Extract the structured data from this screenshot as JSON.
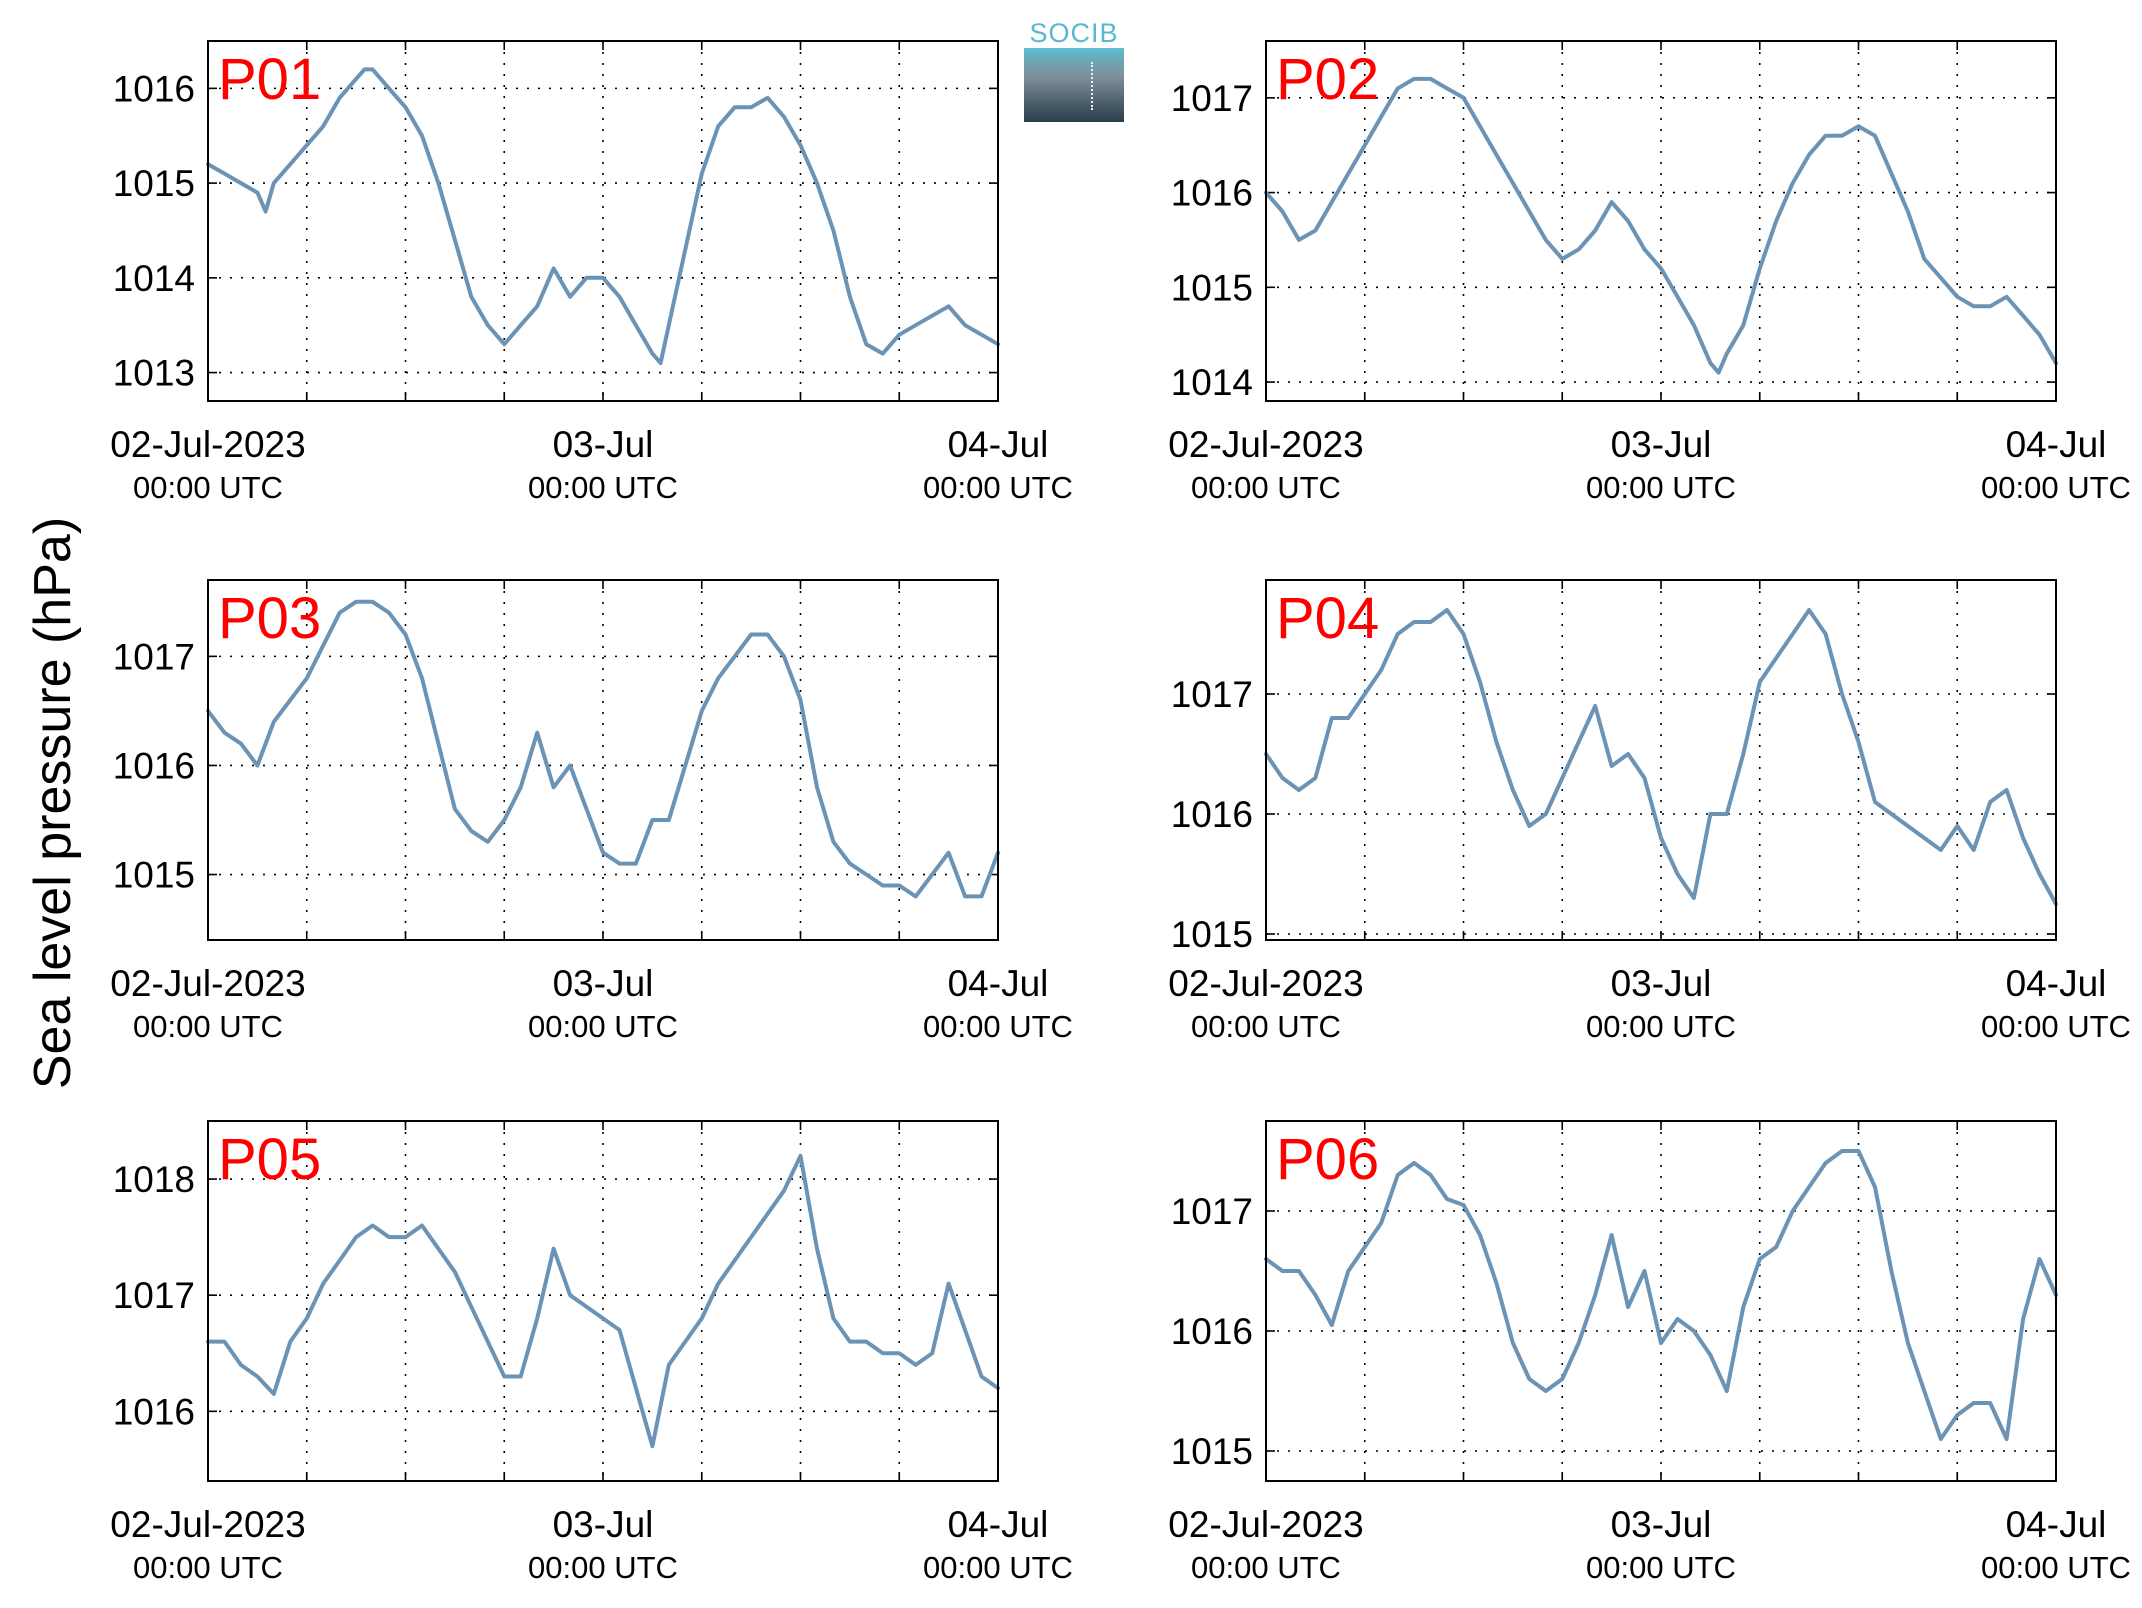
{
  "figure": {
    "ylabel": "Sea level pressure (hPa)",
    "line_color": "#6b93b5",
    "panel_label_color": "#ff0000",
    "logo_text": "SOCIB",
    "x_tick_labels": [
      {
        "date": "02-Jul-2023",
        "time": "00:00 UTC"
      },
      {
        "date": "03-Jul",
        "time": "00:00 UTC"
      },
      {
        "date": "04-Jul",
        "time": "00:00 UTC"
      }
    ]
  },
  "chart_data": [
    {
      "type": "line",
      "panel": "P01",
      "xlim": [
        "2023-07-02 00:00",
        "2023-07-04 00:00"
      ],
      "ylim": [
        1012.7,
        1016.5
      ],
      "yticks": [
        1013,
        1014,
        1015,
        1016
      ],
      "grid": true,
      "series": [
        {
          "x": [
            "2023-07-02 00:00",
            "2023-07-02 01:00",
            "2023-07-02 02:00",
            "2023-07-02 03:00",
            "2023-07-02 03:30",
            "2023-07-02 04:00",
            "2023-07-02 05:00",
            "2023-07-02 06:00",
            "2023-07-02 07:00",
            "2023-07-02 08:00",
            "2023-07-02 09:00",
            "2023-07-02 09:30",
            "2023-07-02 10:00",
            "2023-07-02 11:00",
            "2023-07-02 12:00",
            "2023-07-02 13:00",
            "2023-07-02 14:00",
            "2023-07-02 15:00",
            "2023-07-02 16:00",
            "2023-07-02 17:00",
            "2023-07-02 18:00",
            "2023-07-02 19:00",
            "2023-07-02 20:00",
            "2023-07-02 21:00",
            "2023-07-02 22:00",
            "2023-07-02 23:00",
            "2023-07-03 00:00",
            "2023-07-03 01:00",
            "2023-07-03 02:00",
            "2023-07-03 03:00",
            "2023-07-03 03:30",
            "2023-07-03 04:00",
            "2023-07-03 05:00",
            "2023-07-03 06:00",
            "2023-07-03 07:00",
            "2023-07-03 08:00",
            "2023-07-03 09:00",
            "2023-07-03 10:00",
            "2023-07-03 11:00",
            "2023-07-03 12:00",
            "2023-07-03 13:00",
            "2023-07-03 14:00",
            "2023-07-03 15:00",
            "2023-07-03 16:00",
            "2023-07-03 17:00",
            "2023-07-03 18:00",
            "2023-07-03 19:00",
            "2023-07-03 20:00",
            "2023-07-03 21:00",
            "2023-07-03 22:00",
            "2023-07-03 23:00",
            "2023-07-04 00:00"
          ],
          "y": [
            1015.2,
            1015.1,
            1015.0,
            1014.9,
            1014.7,
            1015.0,
            1015.2,
            1015.4,
            1015.6,
            1015.9,
            1016.1,
            1016.2,
            1016.2,
            1016.0,
            1015.8,
            1015.5,
            1015.0,
            1014.4,
            1013.8,
            1013.5,
            1013.3,
            1013.5,
            1013.7,
            1014.1,
            1013.8,
            1014.0,
            1014.0,
            1013.8,
            1013.5,
            1013.2,
            1013.1,
            1013.5,
            1014.3,
            1015.1,
            1015.6,
            1015.8,
            1015.8,
            1015.9,
            1015.7,
            1015.4,
            1015.0,
            1014.5,
            1013.8,
            1013.3,
            1013.2,
            1013.4,
            1013.5,
            1013.6,
            1013.7,
            1013.5,
            1013.4,
            1013.3
          ]
        }
      ]
    },
    {
      "type": "line",
      "panel": "P02",
      "xlim": [
        "2023-07-02 00:00",
        "2023-07-04 00:00"
      ],
      "ylim": [
        1013.8,
        1017.6
      ],
      "yticks": [
        1014,
        1015,
        1016,
        1017
      ],
      "grid": true,
      "series": [
        {
          "x": [
            "2023-07-02 00:00",
            "2023-07-02 01:00",
            "2023-07-02 02:00",
            "2023-07-02 03:00",
            "2023-07-02 04:00",
            "2023-07-02 05:00",
            "2023-07-02 06:00",
            "2023-07-02 07:00",
            "2023-07-02 08:00",
            "2023-07-02 09:00",
            "2023-07-02 10:00",
            "2023-07-02 11:00",
            "2023-07-02 12:00",
            "2023-07-02 13:00",
            "2023-07-02 14:00",
            "2023-07-02 15:00",
            "2023-07-02 16:00",
            "2023-07-02 17:00",
            "2023-07-02 18:00",
            "2023-07-02 19:00",
            "2023-07-02 20:00",
            "2023-07-02 21:00",
            "2023-07-02 22:00",
            "2023-07-02 23:00",
            "2023-07-03 00:00",
            "2023-07-03 01:00",
            "2023-07-03 02:00",
            "2023-07-03 03:00",
            "2023-07-03 03:30",
            "2023-07-03 04:00",
            "2023-07-03 05:00",
            "2023-07-03 06:00",
            "2023-07-03 07:00",
            "2023-07-03 08:00",
            "2023-07-03 09:00",
            "2023-07-03 10:00",
            "2023-07-03 11:00",
            "2023-07-03 12:00",
            "2023-07-03 13:00",
            "2023-07-03 14:00",
            "2023-07-03 15:00",
            "2023-07-03 16:00",
            "2023-07-03 17:00",
            "2023-07-03 18:00",
            "2023-07-03 19:00",
            "2023-07-03 20:00",
            "2023-07-03 21:00",
            "2023-07-03 22:00",
            "2023-07-03 23:00",
            "2023-07-04 00:00"
          ],
          "y": [
            1016.0,
            1015.8,
            1015.5,
            1015.6,
            1015.9,
            1016.2,
            1016.5,
            1016.8,
            1017.1,
            1017.2,
            1017.2,
            1017.1,
            1017.0,
            1016.7,
            1016.4,
            1016.1,
            1015.8,
            1015.5,
            1015.3,
            1015.4,
            1015.6,
            1015.9,
            1015.7,
            1015.4,
            1015.2,
            1014.9,
            1014.6,
            1014.2,
            1014.1,
            1014.3,
            1014.6,
            1015.2,
            1015.7,
            1016.1,
            1016.4,
            1016.6,
            1016.6,
            1016.7,
            1016.6,
            1016.2,
            1015.8,
            1015.3,
            1015.1,
            1014.9,
            1014.8,
            1014.8,
            1014.9,
            1014.7,
            1014.5,
            1014.2
          ]
        }
      ]
    },
    {
      "type": "line",
      "panel": "P03",
      "xlim": [
        "2023-07-02 00:00",
        "2023-07-04 00:00"
      ],
      "ylim": [
        1014.4,
        1017.7
      ],
      "yticks": [
        1015,
        1016,
        1017
      ],
      "grid": true,
      "series": [
        {
          "x": [
            "2023-07-02 00:00",
            "2023-07-02 01:00",
            "2023-07-02 02:00",
            "2023-07-02 03:00",
            "2023-07-02 04:00",
            "2023-07-02 05:00",
            "2023-07-02 06:00",
            "2023-07-02 07:00",
            "2023-07-02 08:00",
            "2023-07-02 09:00",
            "2023-07-02 10:00",
            "2023-07-02 11:00",
            "2023-07-02 12:00",
            "2023-07-02 13:00",
            "2023-07-02 14:00",
            "2023-07-02 15:00",
            "2023-07-02 16:00",
            "2023-07-02 17:00",
            "2023-07-02 18:00",
            "2023-07-02 19:00",
            "2023-07-02 20:00",
            "2023-07-02 21:00",
            "2023-07-02 22:00",
            "2023-07-02 23:00",
            "2023-07-03 00:00",
            "2023-07-03 01:00",
            "2023-07-03 02:00",
            "2023-07-03 03:00",
            "2023-07-03 04:00",
            "2023-07-03 05:00",
            "2023-07-03 06:00",
            "2023-07-03 07:00",
            "2023-07-03 08:00",
            "2023-07-03 09:00",
            "2023-07-03 10:00",
            "2023-07-03 11:00",
            "2023-07-03 12:00",
            "2023-07-03 13:00",
            "2023-07-03 14:00",
            "2023-07-03 15:00",
            "2023-07-03 16:00",
            "2023-07-03 17:00",
            "2023-07-03 18:00",
            "2023-07-03 19:00",
            "2023-07-03 20:00",
            "2023-07-03 21:00",
            "2023-07-03 22:00",
            "2023-07-03 23:00",
            "2023-07-04 00:00"
          ],
          "y": [
            1016.5,
            1016.3,
            1016.2,
            1016.0,
            1016.4,
            1016.6,
            1016.8,
            1017.1,
            1017.4,
            1017.5,
            1017.5,
            1017.4,
            1017.2,
            1016.8,
            1016.2,
            1015.6,
            1015.4,
            1015.3,
            1015.5,
            1015.8,
            1016.3,
            1015.8,
            1016.0,
            1015.6,
            1015.2,
            1015.1,
            1015.1,
            1015.5,
            1015.5,
            1016.0,
            1016.5,
            1016.8,
            1017.0,
            1017.2,
            1017.2,
            1017.0,
            1016.6,
            1015.8,
            1015.3,
            1015.1,
            1015.0,
            1014.9,
            1014.9,
            1014.8,
            1015.0,
            1015.2,
            1014.8,
            1014.8,
            1015.2
          ]
        }
      ]
    },
    {
      "type": "line",
      "panel": "P04",
      "xlim": [
        "2023-07-02 00:00",
        "2023-07-04 00:00"
      ],
      "ylim": [
        1014.95,
        1017.95
      ],
      "yticks": [
        1015,
        1016,
        1017
      ],
      "grid": true,
      "series": [
        {
          "x": [
            "2023-07-02 00:00",
            "2023-07-02 01:00",
            "2023-07-02 02:00",
            "2023-07-02 03:00",
            "2023-07-02 04:00",
            "2023-07-02 05:00",
            "2023-07-02 06:00",
            "2023-07-02 07:00",
            "2023-07-02 08:00",
            "2023-07-02 09:00",
            "2023-07-02 10:00",
            "2023-07-02 11:00",
            "2023-07-02 12:00",
            "2023-07-02 13:00",
            "2023-07-02 14:00",
            "2023-07-02 15:00",
            "2023-07-02 16:00",
            "2023-07-02 17:00",
            "2023-07-02 18:00",
            "2023-07-02 19:00",
            "2023-07-02 20:00",
            "2023-07-02 21:00",
            "2023-07-02 22:00",
            "2023-07-02 23:00",
            "2023-07-03 00:00",
            "2023-07-03 01:00",
            "2023-07-03 02:00",
            "2023-07-03 03:00",
            "2023-07-03 04:00",
            "2023-07-03 05:00",
            "2023-07-03 06:00",
            "2023-07-03 07:00",
            "2023-07-03 08:00",
            "2023-07-03 09:00",
            "2023-07-03 10:00",
            "2023-07-03 11:00",
            "2023-07-03 12:00",
            "2023-07-03 13:00",
            "2023-07-03 14:00",
            "2023-07-03 15:00",
            "2023-07-03 16:00",
            "2023-07-03 17:00",
            "2023-07-03 18:00",
            "2023-07-03 19:00",
            "2023-07-03 20:00",
            "2023-07-03 21:00",
            "2023-07-03 22:00",
            "2023-07-03 23:00",
            "2023-07-04 00:00"
          ],
          "y": [
            1016.5,
            1016.3,
            1016.2,
            1016.3,
            1016.8,
            1016.8,
            1017.0,
            1017.2,
            1017.5,
            1017.6,
            1017.6,
            1017.7,
            1017.5,
            1017.1,
            1016.6,
            1016.2,
            1015.9,
            1016.0,
            1016.3,
            1016.6,
            1016.9,
            1016.4,
            1016.5,
            1016.3,
            1015.8,
            1015.5,
            1015.3,
            1016.0,
            1016.0,
            1016.5,
            1017.1,
            1017.3,
            1017.5,
            1017.7,
            1017.5,
            1017.0,
            1016.6,
            1016.1,
            1016.0,
            1015.9,
            1015.8,
            1015.7,
            1015.9,
            1015.7,
            1016.1,
            1016.2,
            1015.8,
            1015.5,
            1015.25
          ]
        }
      ]
    },
    {
      "type": "line",
      "panel": "P05",
      "xlim": [
        "2023-07-02 00:00",
        "2023-07-04 00:00"
      ],
      "ylim": [
        1015.4,
        1018.5
      ],
      "yticks": [
        1016,
        1017,
        1018
      ],
      "grid": true,
      "series": [
        {
          "x": [
            "2023-07-02 00:00",
            "2023-07-02 01:00",
            "2023-07-02 02:00",
            "2023-07-02 03:00",
            "2023-07-02 04:00",
            "2023-07-02 05:00",
            "2023-07-02 06:00",
            "2023-07-02 07:00",
            "2023-07-02 08:00",
            "2023-07-02 09:00",
            "2023-07-02 10:00",
            "2023-07-02 11:00",
            "2023-07-02 12:00",
            "2023-07-02 13:00",
            "2023-07-02 14:00",
            "2023-07-02 15:00",
            "2023-07-02 16:00",
            "2023-07-02 17:00",
            "2023-07-02 18:00",
            "2023-07-02 19:00",
            "2023-07-02 20:00",
            "2023-07-02 21:00",
            "2023-07-02 22:00",
            "2023-07-02 23:00",
            "2023-07-03 00:00",
            "2023-07-03 01:00",
            "2023-07-03 02:00",
            "2023-07-03 03:00",
            "2023-07-03 04:00",
            "2023-07-03 05:00",
            "2023-07-03 06:00",
            "2023-07-03 07:00",
            "2023-07-03 08:00",
            "2023-07-03 09:00",
            "2023-07-03 10:00",
            "2023-07-03 11:00",
            "2023-07-03 12:00",
            "2023-07-03 13:00",
            "2023-07-03 14:00",
            "2023-07-03 15:00",
            "2023-07-03 16:00",
            "2023-07-03 17:00",
            "2023-07-03 18:00",
            "2023-07-03 19:00",
            "2023-07-03 20:00",
            "2023-07-03 21:00",
            "2023-07-03 22:00",
            "2023-07-03 23:00",
            "2023-07-04 00:00"
          ],
          "y": [
            1016.6,
            1016.6,
            1016.4,
            1016.3,
            1016.15,
            1016.6,
            1016.8,
            1017.1,
            1017.3,
            1017.5,
            1017.6,
            1017.5,
            1017.5,
            1017.6,
            1017.4,
            1017.2,
            1016.9,
            1016.6,
            1016.3,
            1016.3,
            1016.8,
            1017.4,
            1017.0,
            1016.9,
            1016.8,
            1016.7,
            1016.2,
            1015.7,
            1016.4,
            1016.6,
            1016.8,
            1017.1,
            1017.3,
            1017.5,
            1017.7,
            1017.9,
            1018.2,
            1017.4,
            1016.8,
            1016.6,
            1016.6,
            1016.5,
            1016.5,
            1016.4,
            1016.5,
            1017.1,
            1016.7,
            1016.3,
            1016.2
          ]
        }
      ]
    },
    {
      "type": "line",
      "panel": "P06",
      "xlim": [
        "2023-07-02 00:00",
        "2023-07-04 00:00"
      ],
      "ylim": [
        1014.75,
        1017.75
      ],
      "yticks": [
        1015,
        1016,
        1017
      ],
      "grid": true,
      "series": [
        {
          "x": [
            "2023-07-02 00:00",
            "2023-07-02 01:00",
            "2023-07-02 02:00",
            "2023-07-02 03:00",
            "2023-07-02 04:00",
            "2023-07-02 05:00",
            "2023-07-02 06:00",
            "2023-07-02 07:00",
            "2023-07-02 08:00",
            "2023-07-02 09:00",
            "2023-07-02 10:00",
            "2023-07-02 11:00",
            "2023-07-02 12:00",
            "2023-07-02 13:00",
            "2023-07-02 14:00",
            "2023-07-02 15:00",
            "2023-07-02 16:00",
            "2023-07-02 17:00",
            "2023-07-02 18:00",
            "2023-07-02 19:00",
            "2023-07-02 20:00",
            "2023-07-02 21:00",
            "2023-07-02 22:00",
            "2023-07-02 23:00",
            "2023-07-03 00:00",
            "2023-07-03 01:00",
            "2023-07-03 02:00",
            "2023-07-03 03:00",
            "2023-07-03 04:00",
            "2023-07-03 05:00",
            "2023-07-03 06:00",
            "2023-07-03 07:00",
            "2023-07-03 08:00",
            "2023-07-03 09:00",
            "2023-07-03 10:00",
            "2023-07-03 11:00",
            "2023-07-03 12:00",
            "2023-07-03 13:00",
            "2023-07-03 14:00",
            "2023-07-03 15:00",
            "2023-07-03 16:00",
            "2023-07-03 17:00",
            "2023-07-03 18:00",
            "2023-07-03 19:00",
            "2023-07-03 20:00",
            "2023-07-03 21:00",
            "2023-07-03 22:00",
            "2023-07-03 23:00",
            "2023-07-04 00:00"
          ],
          "y": [
            1016.6,
            1016.5,
            1016.5,
            1016.3,
            1016.05,
            1016.5,
            1016.7,
            1016.9,
            1017.3,
            1017.4,
            1017.3,
            1017.1,
            1017.05,
            1016.8,
            1016.4,
            1015.9,
            1015.6,
            1015.5,
            1015.6,
            1015.9,
            1016.3,
            1016.8,
            1016.2,
            1016.5,
            1015.9,
            1016.1,
            1016.0,
            1015.8,
            1015.5,
            1016.2,
            1016.6,
            1016.7,
            1017.0,
            1017.2,
            1017.4,
            1017.5,
            1017.5,
            1017.2,
            1016.5,
            1015.9,
            1015.5,
            1015.1,
            1015.3,
            1015.4,
            1015.4,
            1015.1,
            1016.1,
            1016.6,
            1016.3
          ]
        }
      ]
    }
  ]
}
